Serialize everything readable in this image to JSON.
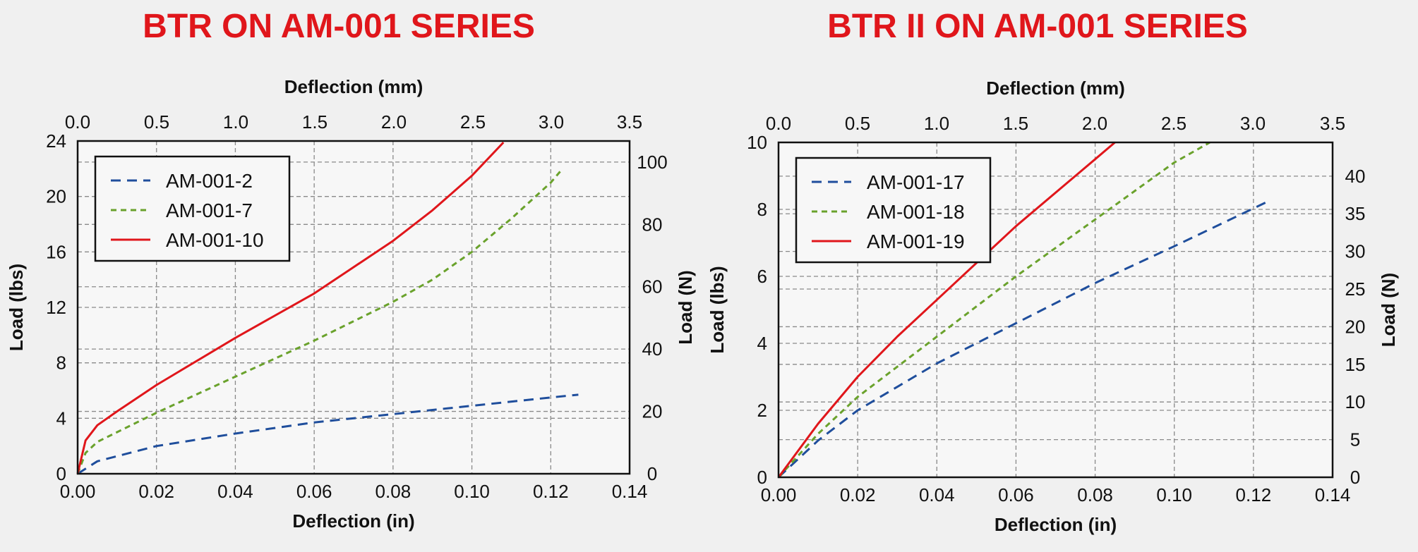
{
  "chart_data": [
    {
      "type": "line",
      "title": "BTR ON AM-001 SERIES",
      "xlabel": "Deflection (in)",
      "ylabel": "Load (lbs)",
      "x2label": "Deflection (mm)",
      "y2label": "Load (N)",
      "xlim": [
        0,
        0.14
      ],
      "ylim": [
        0,
        24
      ],
      "x2lim": [
        0,
        3.5
      ],
      "y2lim": [
        0,
        106.76
      ],
      "x_ticks": [
        "0.00",
        "0.02",
        "0.04",
        "0.06",
        "0.08",
        "0.10",
        "0.12",
        "0.14"
      ],
      "y_ticks": [
        "0",
        "4",
        "8",
        "12",
        "16",
        "20",
        "24"
      ],
      "x2_ticks": [
        "0.0",
        "0.5",
        "1.0",
        "1.5",
        "2.0",
        "2.5",
        "3.0",
        "3.5"
      ],
      "y2_ticks": [
        "0",
        "20",
        "40",
        "60",
        "80",
        "100"
      ],
      "grid": true,
      "legend_position": "top-left",
      "series": [
        {
          "name": "AM-001-2",
          "color": "#1f4e9c",
          "dash": "dash",
          "x": [
            0,
            0.005,
            0.02,
            0.04,
            0.06,
            0.08,
            0.1,
            0.12,
            0.127
          ],
          "y": [
            0,
            0.9,
            2.0,
            2.9,
            3.7,
            4.3,
            4.9,
            5.5,
            5.7
          ]
        },
        {
          "name": "AM-001-7",
          "color": "#6aa22c",
          "dash": "short",
          "x": [
            0,
            0.002,
            0.005,
            0.02,
            0.04,
            0.06,
            0.08,
            0.09,
            0.1,
            0.11,
            0.12,
            0.123
          ],
          "y": [
            0,
            1.5,
            2.3,
            4.4,
            7.0,
            9.6,
            12.4,
            14.0,
            16.0,
            18.4,
            21.0,
            22.0
          ]
        },
        {
          "name": "AM-001-10",
          "color": "#e0161b",
          "dash": "solid",
          "x": [
            0,
            0.002,
            0.005,
            0.01,
            0.02,
            0.04,
            0.06,
            0.08,
            0.09,
            0.1,
            0.108
          ],
          "y": [
            0,
            2.4,
            3.5,
            4.5,
            6.4,
            9.8,
            13.0,
            16.8,
            19.0,
            21.5,
            23.9
          ]
        }
      ]
    },
    {
      "type": "line",
      "title": "BTR II ON AM-001 SERIES",
      "xlabel": "Deflection (in)",
      "ylabel": "Load (lbs)",
      "x2label": "Deflection (mm)",
      "y2label": "Load (N)",
      "xlim": [
        0,
        0.14
      ],
      "ylim": [
        0,
        10
      ],
      "x2lim": [
        0,
        3.5
      ],
      "y2lim": [
        0,
        44.48
      ],
      "x_ticks": [
        "0.00",
        "0.02",
        "0.04",
        "0.06",
        "0.08",
        "0.10",
        "0.12",
        "0.14"
      ],
      "y_ticks": [
        "0",
        "2",
        "4",
        "6",
        "8",
        "10"
      ],
      "x2_ticks": [
        "0.0",
        "0.5",
        "1.0",
        "1.5",
        "2.0",
        "2.5",
        "3.0",
        "3.5"
      ],
      "y2_ticks": [
        "0",
        "5",
        "10",
        "15",
        "20",
        "25",
        "30",
        "35",
        "40"
      ],
      "grid": true,
      "legend_position": "top-left",
      "series": [
        {
          "name": "AM-001-17",
          "color": "#1f4e9c",
          "dash": "dash",
          "x": [
            0,
            0.01,
            0.02,
            0.04,
            0.06,
            0.08,
            0.1,
            0.123
          ],
          "y": [
            0,
            1.1,
            2.0,
            3.4,
            4.6,
            5.8,
            6.9,
            8.2
          ]
        },
        {
          "name": "AM-001-18",
          "color": "#6aa22c",
          "dash": "short",
          "x": [
            0,
            0.01,
            0.02,
            0.04,
            0.06,
            0.08,
            0.1,
            0.109
          ],
          "y": [
            0,
            1.3,
            2.4,
            4.2,
            6.0,
            7.7,
            9.4,
            10.0
          ]
        },
        {
          "name": "AM-001-19",
          "color": "#e0161b",
          "dash": "solid",
          "x": [
            0,
            0.01,
            0.02,
            0.03,
            0.04,
            0.06,
            0.08,
            0.085
          ],
          "y": [
            0,
            1.6,
            3.0,
            4.2,
            5.3,
            7.5,
            9.5,
            10.0
          ]
        }
      ]
    }
  ]
}
